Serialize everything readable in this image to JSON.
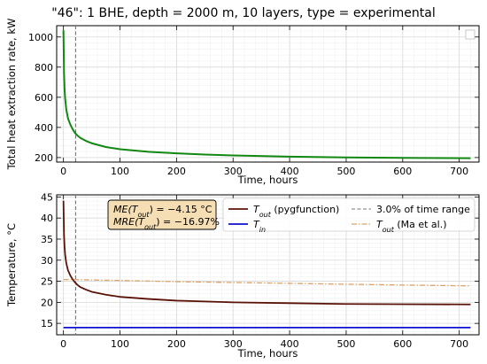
{
  "figure": {
    "title": "\"46\": 1 BHE, depth = 2000 m, 10 layers, type = experimental"
  },
  "colors": {
    "q_line": "#118811",
    "tout_line": "#5a1208",
    "tin_line": "#1010d0",
    "tout_ma_line": "#d9a36a",
    "vline": "#777777",
    "stats_box_fill": "#f5deb3"
  },
  "chart_data": [
    {
      "id": "heat_extraction",
      "type": "line",
      "title": "\"46\": 1 BHE, depth = 2000 m, 10 layers, type = experimental",
      "xlabel": "Time, hours",
      "ylabel": "Total heat extraction rate, kW",
      "xlim": [
        -12,
        735
      ],
      "ylim": [
        170,
        1075
      ],
      "xticks": [
        0,
        100,
        200,
        300,
        400,
        500,
        600,
        700
      ],
      "yticks": [
        200,
        400,
        600,
        800,
        1000
      ],
      "grid": true,
      "legend": "top-right (empty)",
      "series": [
        {
          "key": "q",
          "style": "solid",
          "x": [
            0,
            1,
            2,
            3,
            5,
            8,
            12,
            16,
            20,
            25,
            30,
            40,
            50,
            75,
            100,
            150,
            200,
            250,
            300,
            400,
            500,
            600,
            720
          ],
          "y": [
            1045,
            760,
            650,
            590,
            520,
            460,
            420,
            390,
            365,
            345,
            330,
            310,
            295,
            270,
            255,
            238,
            228,
            220,
            214,
            206,
            201,
            198,
            196
          ]
        }
      ],
      "vlines": [
        {
          "key": "time_range_marker",
          "x": 21.6
        }
      ]
    },
    {
      "id": "temperatures",
      "type": "line",
      "xlabel": "Time, hours",
      "ylabel": "Temperature, °C",
      "xlim": [
        -12,
        735
      ],
      "ylim": [
        12.3,
        45.5
      ],
      "xticks": [
        0,
        100,
        200,
        300,
        400,
        500,
        600,
        700
      ],
      "yticks": [
        15,
        20,
        25,
        30,
        35,
        40,
        45
      ],
      "grid": true,
      "legend": "top-right",
      "series": [
        {
          "key": "tout",
          "name": "T_out (pygfunction)",
          "style": "solid",
          "x": [
            0,
            1,
            2,
            3,
            5,
            8,
            12,
            16,
            20,
            25,
            30,
            40,
            50,
            75,
            100,
            150,
            200,
            250,
            300,
            400,
            500,
            600,
            720
          ],
          "y": [
            44.1,
            36.0,
            33.0,
            31.2,
            29.3,
            27.6,
            26.4,
            25.5,
            24.8,
            24.1,
            23.6,
            23.0,
            22.5,
            21.8,
            21.3,
            20.8,
            20.4,
            20.2,
            20.0,
            19.8,
            19.6,
            19.55,
            19.5
          ]
        },
        {
          "key": "tin",
          "name": "T_in",
          "style": "solid",
          "x": [
            0,
            720
          ],
          "y": [
            14.0,
            14.0
          ]
        },
        {
          "key": "tout_ma",
          "name": "T_out (Ma et al.)",
          "style": "dashdot",
          "x": [
            0,
            20,
            50,
            100,
            200,
            300,
            400,
            500,
            600,
            720
          ],
          "y": [
            25.4,
            25.4,
            25.3,
            25.2,
            24.9,
            24.7,
            24.5,
            24.3,
            24.1,
            23.9
          ]
        }
      ],
      "vlines": [
        {
          "key": "time_range_marker",
          "x": 21.6,
          "name": "3.0% of time range"
        }
      ],
      "stats": {
        "me_prefix": "ME(",
        "me_var": "T",
        "me_sub": "out",
        "me_value": ") = −4.15 °C",
        "mre_prefix": "MRE(",
        "mre_var": "T",
        "mre_sub": "out",
        "mre_value": ") = −16.97%"
      },
      "legend_items": {
        "tout": {
          "var": "T",
          "sub": "out",
          "text": " (pygfunction)"
        },
        "tin": {
          "var": "T",
          "sub": "in",
          "text": ""
        },
        "vline": {
          "text": "3.0% of time range"
        },
        "tout_ma": {
          "var": "T",
          "sub": "out",
          "text": " (Ma et al.)"
        }
      }
    }
  ]
}
